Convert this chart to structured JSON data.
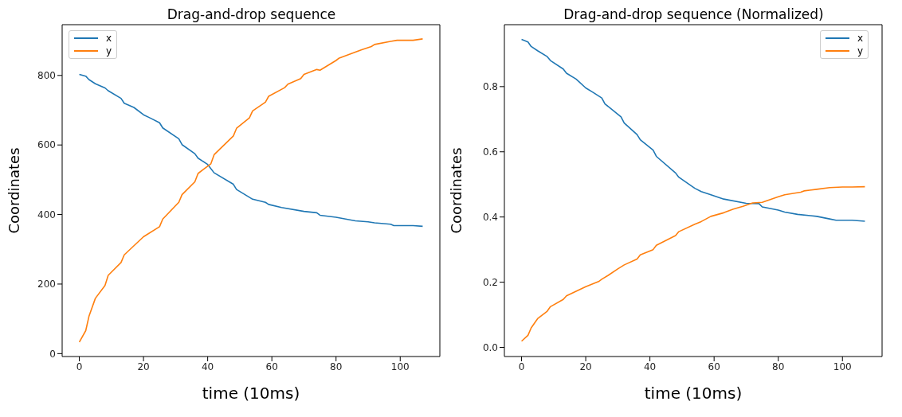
{
  "chart_data": [
    {
      "type": "line",
      "title": "Drag-and-drop sequence",
      "xlabel": "time (10ms)",
      "ylabel": "Coordinates",
      "xlim": [
        -5.35,
        112.35
      ],
      "ylim": [
        -8.4,
        946
      ],
      "xticks": [
        0,
        20,
        40,
        60,
        80,
        100
      ],
      "yticks": [
        0,
        200,
        400,
        600,
        800
      ],
      "legend": "top left",
      "grid": false,
      "series": [
        {
          "name": "x",
          "color": "#1f77b4",
          "x": [
            0,
            2,
            3,
            5,
            8,
            9,
            13,
            14,
            17,
            20,
            22,
            25,
            26,
            31,
            32,
            36,
            37,
            40,
            42,
            48,
            49,
            54,
            58,
            59,
            63,
            70,
            74,
            75,
            80,
            83,
            86,
            90,
            92,
            97,
            98,
            104,
            107
          ],
          "values": [
            803,
            798,
            788,
            776,
            764,
            756,
            734,
            720,
            708,
            687,
            678,
            664,
            649,
            618,
            601,
            575,
            562,
            544,
            520,
            487,
            472,
            444,
            435,
            429,
            420,
            409,
            405,
            398,
            392,
            387,
            382,
            379,
            376,
            372,
            368,
            368,
            366
          ]
        },
        {
          "name": "y",
          "color": "#ff7f0e",
          "x": [
            0,
            2,
            3,
            5,
            8,
            9,
            13,
            14,
            20,
            25,
            26,
            31,
            32,
            36,
            37,
            41,
            42,
            48,
            49,
            53,
            54,
            58,
            59,
            64,
            65,
            69,
            70,
            74,
            75,
            80,
            81,
            86,
            88,
            91,
            92,
            97,
            99,
            104,
            107
          ],
          "values": [
            33,
            66,
            107,
            159,
            196,
            225,
            262,
            284,
            336,
            365,
            387,
            435,
            457,
            494,
            518,
            546,
            572,
            626,
            648,
            678,
            698,
            723,
            740,
            765,
            775,
            791,
            803,
            817,
            815,
            843,
            850,
            867,
            874,
            883,
            889,
            898,
            901,
            901,
            905
          ]
        }
      ]
    },
    {
      "type": "line",
      "title": "Drag-and-drop sequence (Normalized)",
      "xlabel": "time (10ms)",
      "ylabel": "Coordinates",
      "xlim": [
        -5.35,
        112.35
      ],
      "ylim": [
        -0.028,
        0.99
      ],
      "xticks": [
        0,
        20,
        40,
        60,
        80,
        100
      ],
      "yticks": [
        {
          "value": 0,
          "label": "0.0"
        },
        0.2,
        0.4,
        0.6,
        0.8
      ],
      "legend": "top right",
      "grid": false,
      "series": [
        {
          "name": "x",
          "color": "#1f77b4",
          "x": [
            0,
            2,
            3,
            5,
            8,
            9,
            13,
            14,
            17,
            20,
            22,
            25,
            26,
            31,
            32,
            36,
            37,
            41,
            42,
            48,
            49,
            54,
            56,
            59,
            63,
            70,
            74,
            75,
            80,
            82,
            86,
            90,
            92,
            96,
            98,
            103,
            107
          ],
          "values": [
            0.945,
            0.937,
            0.923,
            0.91,
            0.892,
            0.88,
            0.854,
            0.841,
            0.823,
            0.796,
            0.784,
            0.765,
            0.747,
            0.707,
            0.688,
            0.653,
            0.637,
            0.605,
            0.586,
            0.535,
            0.522,
            0.488,
            0.478,
            0.468,
            0.455,
            0.442,
            0.441,
            0.431,
            0.421,
            0.415,
            0.408,
            0.404,
            0.402,
            0.394,
            0.39,
            0.39,
            0.387
          ]
        },
        {
          "name": "y",
          "color": "#ff7f0e",
          "x": [
            0,
            2,
            3,
            5,
            8,
            9,
            13,
            14,
            20,
            24,
            25,
            27,
            30,
            32,
            36,
            37,
            41,
            42,
            48,
            49,
            54,
            56,
            59,
            63,
            66,
            69,
            72,
            75,
            80,
            82,
            87,
            88,
            92,
            96,
            100,
            103,
            107
          ],
          "values": [
            0.019,
            0.037,
            0.06,
            0.088,
            0.111,
            0.125,
            0.147,
            0.158,
            0.186,
            0.202,
            0.209,
            0.221,
            0.241,
            0.253,
            0.271,
            0.284,
            0.3,
            0.313,
            0.343,
            0.355,
            0.378,
            0.386,
            0.402,
            0.413,
            0.424,
            0.433,
            0.443,
            0.445,
            0.462,
            0.468,
            0.476,
            0.48,
            0.485,
            0.49,
            0.492,
            0.492,
            0.493
          ]
        }
      ]
    }
  ]
}
